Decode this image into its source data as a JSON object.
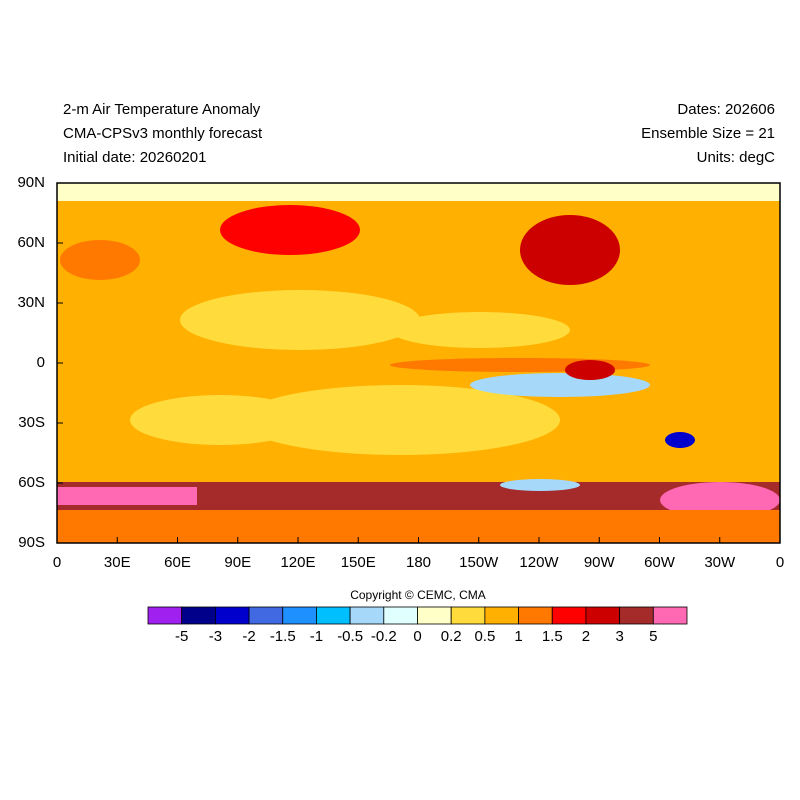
{
  "header": {
    "title": "2-m Air Temperature Anomaly",
    "subtitle": "CMA-CPSv3 monthly forecast",
    "initial_date": "Initial date: 20260201",
    "dates": "Dates: 202606",
    "ensemble": "Ensemble Size = 21",
    "units": "Units: degC"
  },
  "map": {
    "x_labels": [
      "0",
      "30E",
      "60E",
      "90E",
      "120E",
      "150E",
      "180",
      "150W",
      "120W",
      "90W",
      "60W",
      "30W",
      "0"
    ],
    "y_labels": [
      "90N",
      "60N",
      "30N",
      "0",
      "30S",
      "60S",
      "90S"
    ]
  },
  "copyright": "Copyright © CEMC, CMA",
  "colorbar": {
    "labels": [
      -5,
      -3,
      -2,
      -1.5,
      -1,
      -0.5,
      -0.2,
      0,
      0.2,
      0.5,
      1,
      1.5,
      2,
      3,
      5
    ],
    "colors": [
      "#a020f0",
      "#00008b",
      "#0000cd",
      "#4169e1",
      "#1e90ff",
      "#00bfff",
      "#a6d8fa",
      "#e0ffff",
      "#ffffc8",
      "#ffdc3c",
      "#ffb000",
      "#ff7800",
      "#ff0000",
      "#cd0000",
      "#a52a2a",
      "#ff69b4"
    ]
  }
}
